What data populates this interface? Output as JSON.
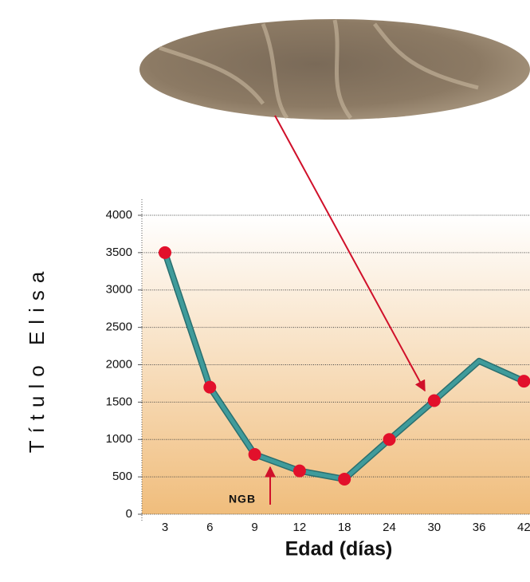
{
  "chart_data": {
    "type": "line",
    "x_label": "Edad (días)",
    "y_label": "Título Elisa",
    "categories": [
      "3",
      "6",
      "9",
      "12",
      "18",
      "24",
      "30",
      "36",
      "42"
    ],
    "values": [
      3500,
      1700,
      800,
      580,
      470,
      1000,
      1520,
      2050,
      1780
    ],
    "markers": [
      true,
      true,
      true,
      true,
      true,
      true,
      true,
      false,
      true
    ],
    "color": "#3f9b9b",
    "marker_color": "#e2102b",
    "ylim": [
      0,
      4000
    ],
    "yticks": [
      0,
      500,
      1000,
      1500,
      2000,
      2500,
      3000,
      3500,
      4000
    ],
    "grid": true,
    "annotation": "NGB"
  }
}
